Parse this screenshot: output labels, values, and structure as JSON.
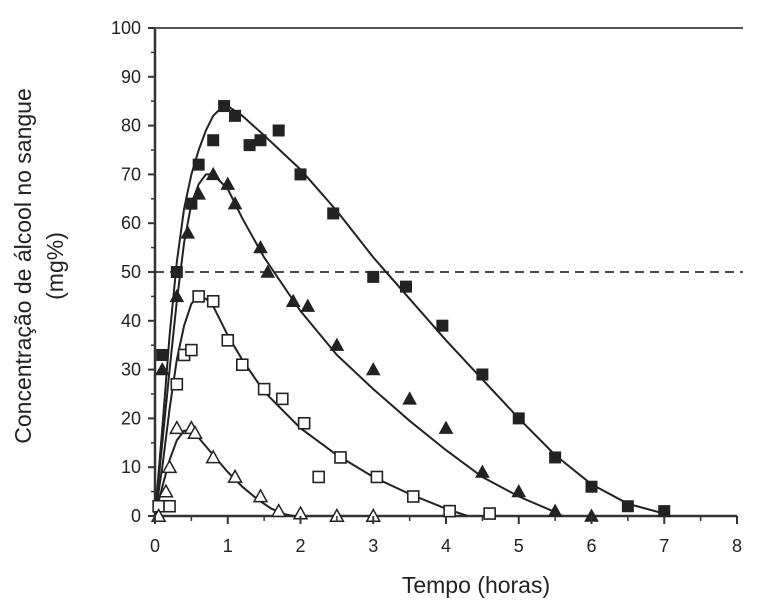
{
  "chart_data": {
    "type": "scatter",
    "title": "",
    "xlabel": "Tempo (horas)",
    "ylabel_line1": "Concentração de álcool no sangue",
    "ylabel_line2": "(mg%)",
    "xlim": [
      0,
      8
    ],
    "ylim": [
      0,
      100
    ],
    "x_ticks": [
      0,
      1,
      2,
      3,
      4,
      5,
      6,
      7,
      8
    ],
    "y_ticks": [
      0,
      10,
      20,
      30,
      40,
      50,
      60,
      70,
      80,
      90,
      100
    ],
    "grid": false,
    "reference_line": {
      "y": 50,
      "style": "dashed"
    },
    "series": [
      {
        "marker": "filled-square",
        "color": "#222222",
        "points": [
          [
            0.1,
            33
          ],
          [
            0.3,
            50
          ],
          [
            0.5,
            64
          ],
          [
            0.6,
            72
          ],
          [
            0.8,
            77
          ],
          [
            0.95,
            84
          ],
          [
            1.1,
            82
          ],
          [
            1.3,
            76
          ],
          [
            1.45,
            77
          ],
          [
            1.7,
            79
          ],
          [
            2.0,
            70
          ],
          [
            2.45,
            62
          ],
          [
            3.0,
            49
          ],
          [
            3.45,
            47
          ],
          [
            3.95,
            39
          ],
          [
            4.5,
            29
          ],
          [
            5.0,
            20
          ],
          [
            5.5,
            12
          ],
          [
            6.0,
            6
          ],
          [
            6.5,
            2
          ],
          [
            7.0,
            1
          ]
        ],
        "curve": [
          [
            0,
            0
          ],
          [
            0.1,
            18
          ],
          [
            0.2,
            37
          ],
          [
            0.3,
            52
          ],
          [
            0.4,
            63
          ],
          [
            0.5,
            70
          ],
          [
            0.6,
            75
          ],
          [
            0.7,
            79
          ],
          [
            0.8,
            82
          ],
          [
            0.9,
            83.5
          ],
          [
            1.0,
            84
          ],
          [
            1.2,
            82
          ],
          [
            1.5,
            78
          ],
          [
            2.0,
            71
          ],
          [
            2.5,
            62.5
          ],
          [
            3.0,
            53
          ],
          [
            3.5,
            44.5
          ],
          [
            4.0,
            36
          ],
          [
            4.5,
            28
          ],
          [
            5.0,
            20
          ],
          [
            5.5,
            12.5
          ],
          [
            6.0,
            6.5
          ],
          [
            6.5,
            2.5
          ],
          [
            7.0,
            0.5
          ]
        ]
      },
      {
        "marker": "filled-triangle",
        "color": "#222222",
        "points": [
          [
            0.1,
            30
          ],
          [
            0.3,
            45
          ],
          [
            0.45,
            58
          ],
          [
            0.6,
            66
          ],
          [
            0.8,
            70
          ],
          [
            1.0,
            68
          ],
          [
            1.1,
            64
          ],
          [
            1.45,
            55
          ],
          [
            1.55,
            50
          ],
          [
            1.9,
            44
          ],
          [
            2.1,
            43
          ],
          [
            2.5,
            35
          ],
          [
            3.0,
            30
          ],
          [
            3.5,
            24
          ],
          [
            4.0,
            18
          ],
          [
            4.5,
            9
          ],
          [
            5.0,
            5
          ],
          [
            5.5,
            1
          ],
          [
            6.0,
            0
          ]
        ],
        "curve": [
          [
            0,
            0
          ],
          [
            0.1,
            15
          ],
          [
            0.2,
            30
          ],
          [
            0.3,
            44
          ],
          [
            0.4,
            56
          ],
          [
            0.5,
            64
          ],
          [
            0.6,
            68
          ],
          [
            0.7,
            70
          ],
          [
            0.8,
            70
          ],
          [
            1.0,
            67
          ],
          [
            1.2,
            61
          ],
          [
            1.5,
            53
          ],
          [
            2.0,
            42
          ],
          [
            2.5,
            33
          ],
          [
            3.0,
            26
          ],
          [
            3.5,
            19.5
          ],
          [
            4.0,
            13.5
          ],
          [
            4.5,
            8
          ],
          [
            5.0,
            4
          ],
          [
            5.5,
            0.8
          ],
          [
            5.6,
            0
          ]
        ]
      },
      {
        "marker": "open-square",
        "color": "#222222",
        "points": [
          [
            0.05,
            2
          ],
          [
            0.2,
            2
          ],
          [
            0.3,
            27
          ],
          [
            0.4,
            33
          ],
          [
            0.5,
            34
          ],
          [
            0.6,
            45
          ],
          [
            0.8,
            44
          ],
          [
            1.0,
            36
          ],
          [
            1.2,
            31
          ],
          [
            1.5,
            26
          ],
          [
            1.75,
            24
          ],
          [
            2.05,
            19
          ],
          [
            2.25,
            8
          ],
          [
            2.55,
            12
          ],
          [
            3.05,
            8
          ],
          [
            3.55,
            4
          ],
          [
            4.05,
            1
          ],
          [
            4.6,
            0.5
          ]
        ],
        "curve": [
          [
            0,
            0
          ],
          [
            0.1,
            10
          ],
          [
            0.2,
            22
          ],
          [
            0.3,
            32
          ],
          [
            0.4,
            39
          ],
          [
            0.5,
            43.5
          ],
          [
            0.6,
            45
          ],
          [
            0.7,
            44.5
          ],
          [
            0.8,
            43
          ],
          [
            1.0,
            37
          ],
          [
            1.2,
            32
          ],
          [
            1.5,
            25.5
          ],
          [
            2.0,
            18
          ],
          [
            2.5,
            12.5
          ],
          [
            3.0,
            8
          ],
          [
            3.5,
            4.5
          ],
          [
            4.0,
            1.5
          ],
          [
            4.3,
            0
          ]
        ]
      },
      {
        "marker": "open-triangle",
        "color": "#222222",
        "points": [
          [
            0.05,
            0
          ],
          [
            0.15,
            5
          ],
          [
            0.2,
            10
          ],
          [
            0.3,
            18
          ],
          [
            0.5,
            18
          ],
          [
            0.55,
            17
          ],
          [
            0.8,
            12
          ],
          [
            1.1,
            8
          ],
          [
            1.45,
            4
          ],
          [
            1.7,
            1
          ],
          [
            2.0,
            0.5
          ],
          [
            2.5,
            0
          ],
          [
            3.0,
            0
          ]
        ],
        "curve": [
          [
            0,
            0
          ],
          [
            0.1,
            6
          ],
          [
            0.2,
            11.5
          ],
          [
            0.3,
            15.5
          ],
          [
            0.4,
            17.5
          ],
          [
            0.5,
            17.5
          ],
          [
            0.6,
            16
          ],
          [
            0.8,
            12.5
          ],
          [
            1.0,
            9
          ],
          [
            1.2,
            6
          ],
          [
            1.4,
            3.5
          ],
          [
            1.6,
            1.5
          ],
          [
            1.8,
            0.3
          ],
          [
            1.9,
            0
          ]
        ]
      }
    ]
  }
}
